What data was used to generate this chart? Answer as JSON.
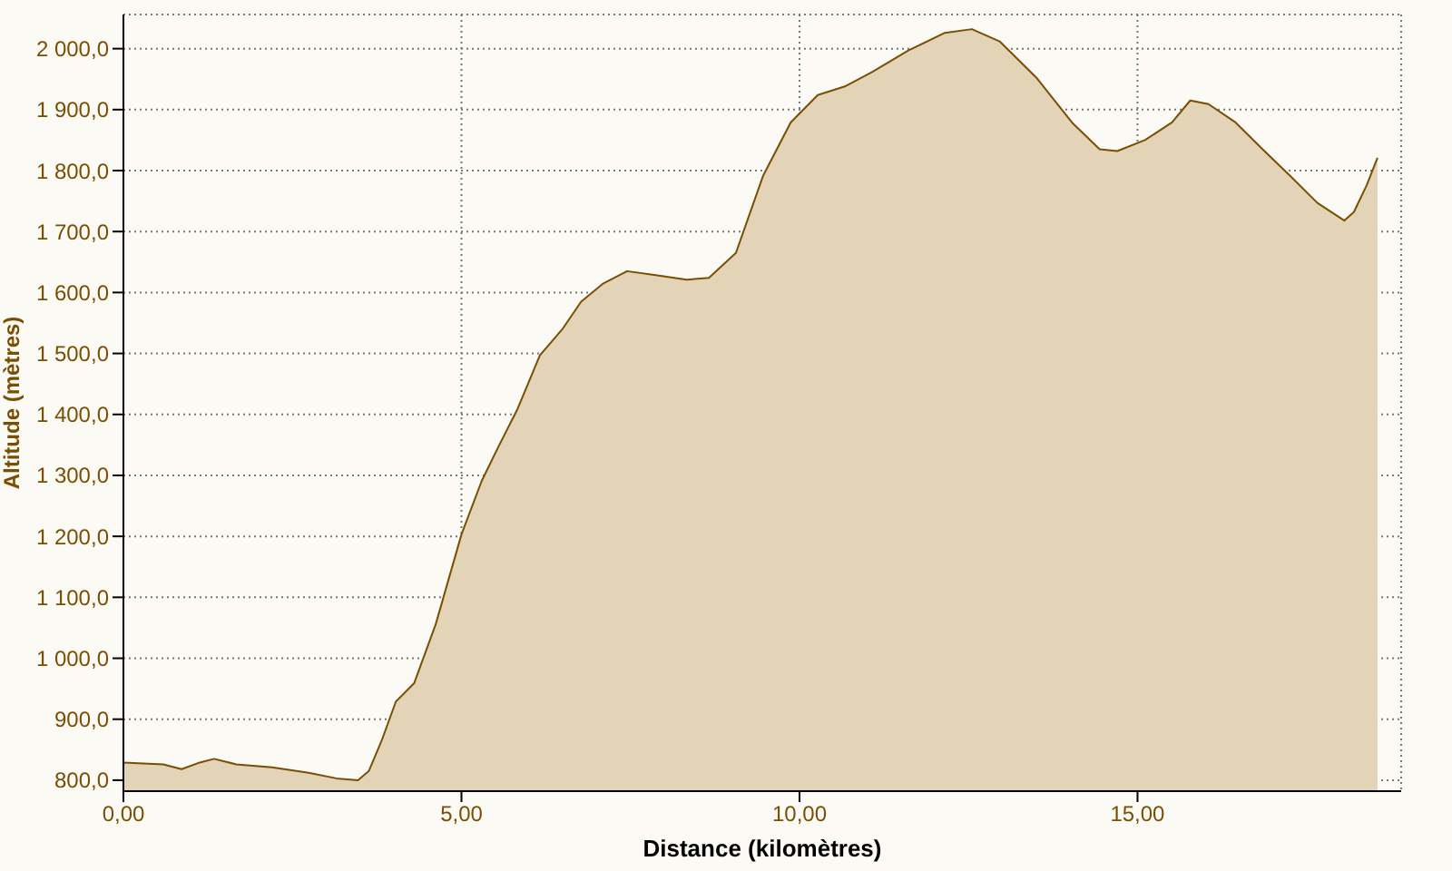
{
  "chart_data": {
    "type": "area",
    "xlabel": "Distance (kilomètres)",
    "ylabel": "Altitude (mètres)",
    "x": [
      0,
      0.59,
      0.86,
      1.13,
      1.34,
      1.67,
      2.2,
      2.74,
      3.15,
      3.47,
      3.63,
      3.82,
      4.03,
      4.3,
      4.62,
      5.0,
      5.3,
      5.56,
      5.83,
      6.16,
      6.5,
      6.77,
      7.1,
      7.45,
      7.85,
      8.33,
      8.66,
      9.06,
      9.46,
      9.87,
      10.27,
      10.67,
      11.08,
      11.61,
      12.15,
      12.55,
      12.96,
      13.5,
      14.03,
      14.44,
      14.7,
      15.11,
      15.51,
      15.78,
      16.05,
      16.45,
      16.85,
      17.26,
      17.66,
      18.06,
      18.2,
      18.39,
      18.55
    ],
    "series": [
      {
        "color": "#7a4e00",
        "values": [
          829,
          826,
          818,
          829,
          835,
          826,
          821,
          812,
          803,
          800,
          815,
          865,
          929,
          959,
          1056,
          1203,
          1291,
          1350,
          1409,
          1497,
          1541,
          1585,
          1615,
          1635,
          1629,
          1621,
          1624,
          1665,
          1791,
          1879,
          1924,
          1938,
          1962,
          1997,
          2026,
          2032,
          2012,
          1953,
          1879,
          1835,
          1832,
          1850,
          1879,
          1915,
          1909,
          1879,
          1835,
          1791,
          1747,
          1718,
          1732,
          1776,
          1821
        ]
      }
    ],
    "xlim": [
      0,
      18.9
    ],
    "xticks": [
      {
        "value": 0,
        "label": "0,00"
      },
      {
        "value": 5,
        "label": "5,00"
      },
      {
        "value": 10,
        "label": "10,00"
      },
      {
        "value": 15,
        "label": "15,00"
      }
    ],
    "ylim": [
      782,
      2056
    ],
    "yticks": [
      {
        "value": 800,
        "label": "800,0"
      },
      {
        "value": 900,
        "label": "900,0"
      },
      {
        "value": 1000,
        "label": "1 000,0"
      },
      {
        "value": 1100,
        "label": "1 100,0"
      },
      {
        "value": 1200,
        "label": "1 200,0"
      },
      {
        "value": 1300,
        "label": "1 300,0"
      },
      {
        "value": 1400,
        "label": "1 400,0"
      },
      {
        "value": 1500,
        "label": "1 500,0"
      },
      {
        "value": 1600,
        "label": "1 600,0"
      },
      {
        "value": 1700,
        "label": "1 700,0"
      },
      {
        "value": 1800,
        "label": "1 800,0"
      },
      {
        "value": 1900,
        "label": "1 900,0"
      },
      {
        "value": 2000,
        "label": "2 000,0"
      }
    ],
    "grid": true,
    "legend": false,
    "marker": "none",
    "line_style": "solid"
  }
}
